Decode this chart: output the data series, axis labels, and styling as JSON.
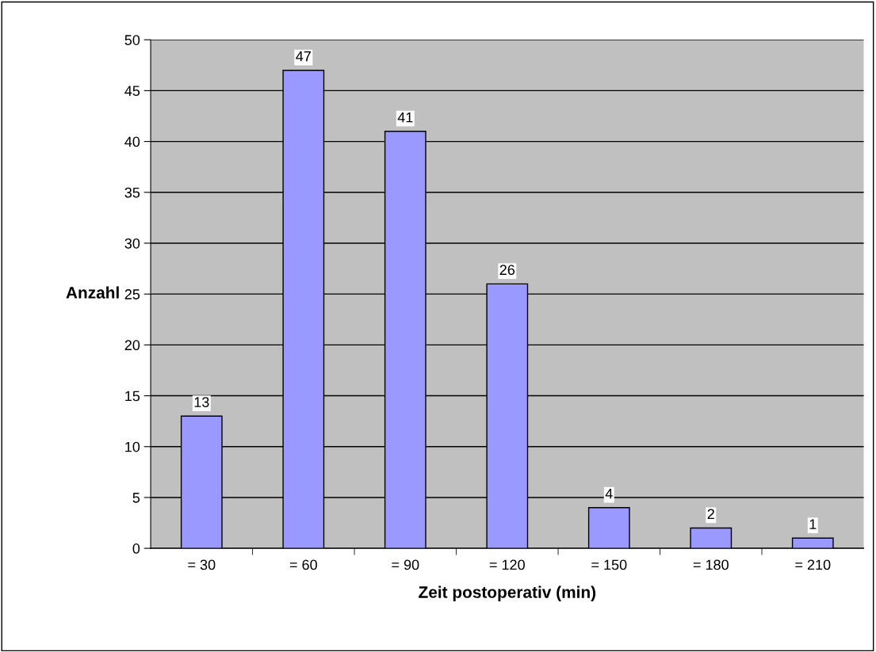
{
  "chart_data": {
    "type": "bar",
    "xlabel": "Zeit postoperativ (min)",
    "ylabel": "Anzahl",
    "categories": [
      "= 30",
      "= 60",
      "= 90",
      "= 120",
      "= 150",
      "= 180",
      "= 210"
    ],
    "values": [
      13,
      47,
      41,
      26,
      4,
      2,
      1
    ],
    "color": "#9999ff",
    "ylim": [
      0,
      50
    ],
    "yticks": [
      0,
      5,
      10,
      15,
      20,
      25,
      30,
      35,
      40,
      45,
      50
    ],
    "grid": "y",
    "data_labels": true
  }
}
